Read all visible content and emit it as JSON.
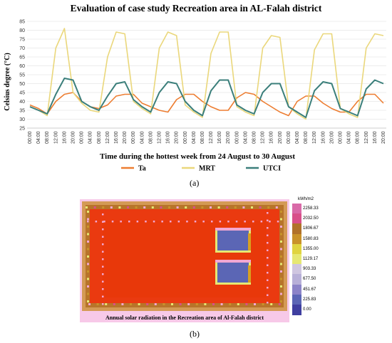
{
  "chart_data": [
    {
      "type": "line",
      "title": "Evaluation of case study Recreation area in AL-Falah district",
      "ylabel": "Celsius degree (°C)",
      "xlabel": "Time during the hottest week from 24 August to 30 August",
      "ylim": [
        25,
        85
      ],
      "yticks": [
        "25",
        "30",
        "35",
        "40",
        "45",
        "50",
        "55",
        "60",
        "65",
        "70",
        "75",
        "80",
        "85"
      ],
      "categories": [
        "00:00",
        "04:00",
        "08:00",
        "12:00",
        "16:00",
        "20:00",
        "00:00",
        "04:00",
        "08:00",
        "12:00",
        "16:00",
        "20:00",
        "00:00",
        "04:00",
        "08:00",
        "12:00",
        "16:00",
        "20:00",
        "00:00",
        "04:00",
        "08:00",
        "12:00",
        "16:00",
        "20:00",
        "00:00",
        "04:00",
        "08:00",
        "12:00",
        "16:00",
        "20:00",
        "00:00",
        "04:00",
        "08:00",
        "12:00",
        "16:00",
        "20:00",
        "00:00",
        "04:00",
        "08:00",
        "12:00",
        "16:00",
        "20:00"
      ],
      "grid": true,
      "legend_position": "bottom",
      "series": [
        {
          "name": "Ta",
          "color": "#ed7d31",
          "values": [
            38,
            36,
            33,
            40,
            44,
            45,
            40,
            37,
            36,
            38,
            43,
            44,
            44,
            39,
            37,
            35,
            34,
            41,
            44,
            44,
            40,
            37,
            35,
            35,
            42,
            45,
            44,
            40,
            37,
            34,
            32,
            40,
            43,
            43,
            39,
            36,
            34,
            34,
            40,
            44,
            44,
            39
          ]
        },
        {
          "name": "MRT",
          "color": "#ead77b",
          "values": [
            37,
            35,
            32,
            70,
            81,
            45,
            39,
            35,
            34,
            65,
            79,
            78,
            40,
            36,
            33,
            70,
            79,
            77,
            38,
            34,
            31,
            67,
            79,
            79,
            37,
            34,
            32,
            70,
            77,
            76,
            37,
            33,
            30,
            69,
            78,
            78,
            36,
            33,
            31,
            70,
            78,
            77
          ]
        },
        {
          "name": "UTCI",
          "color": "#3b7f7b",
          "values": [
            37,
            35,
            33,
            44,
            53,
            52,
            40,
            37,
            35,
            43,
            50,
            51,
            41,
            37,
            34,
            45,
            51,
            50,
            40,
            35,
            32,
            46,
            52,
            52,
            38,
            35,
            33,
            45,
            50,
            50,
            37,
            34,
            31,
            46,
            51,
            50,
            36,
            34,
            32,
            47,
            52,
            50
          ]
        }
      ]
    },
    {
      "type": "heatmap",
      "title": "Annual solar radiation in the Recreation area of Al-Falah district",
      "unit": "kWh/m2",
      "scale_labels": [
        "2258.33",
        "2032.50",
        "1806.67",
        "1580.83",
        "1355.00",
        "1129.17",
        "903.33",
        "677.50",
        "451.67",
        "225.83",
        "0.00"
      ],
      "scale_colors": [
        "#d96aa8",
        "#d8508a",
        "#b0722a",
        "#c9932a",
        "#e0d440",
        "#e6e873",
        "#cfc6e0",
        "#b8b0d8",
        "#8c84c8",
        "#5b66b5",
        "#3f3fa0"
      ]
    }
  ],
  "captions": {
    "a": "(a)",
    "b": "(b)"
  }
}
